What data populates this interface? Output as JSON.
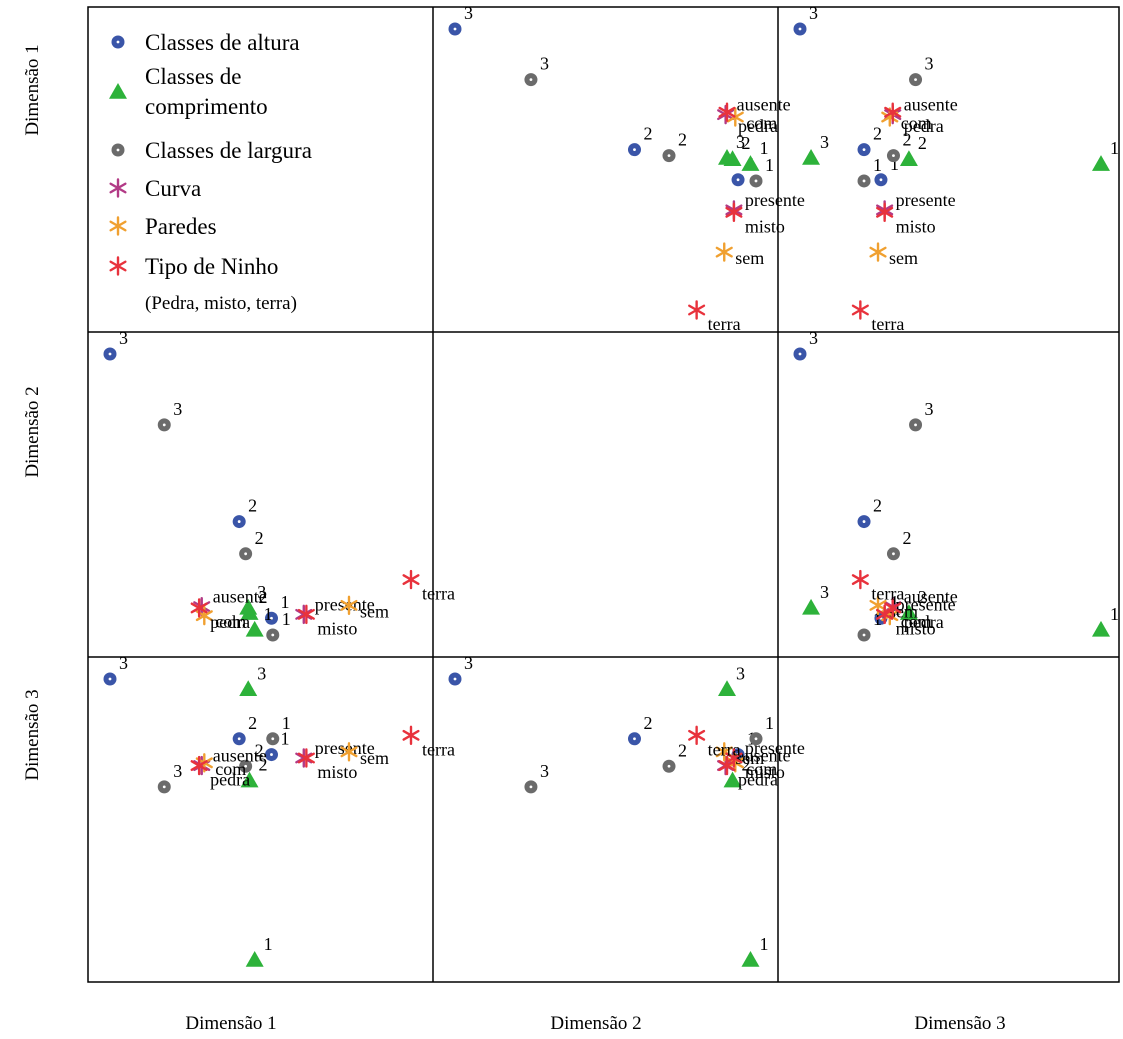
{
  "chart_data": {
    "type": "scatter",
    "title": "",
    "row_labels": [
      "Dimensão 1",
      "Dimensão 2",
      "Dimensão 3"
    ],
    "col_labels": [
      "Dimensão 1",
      "Dimensão 2",
      "Dimensão 3"
    ],
    "legend": {
      "items": [
        {
          "name": "Classes de altura",
          "marker": "circle",
          "color": "#3a55a8"
        },
        {
          "name": "Classes de comprimento",
          "marker": "triangle",
          "color": "#2db23a"
        },
        {
          "name": "Classes de largura",
          "marker": "circle",
          "color": "#6b6b6b"
        },
        {
          "name": "Curva",
          "marker": "star",
          "color": "#b23a86"
        },
        {
          "name": "Paredes",
          "marker": "star",
          "color": "#f0a030"
        },
        {
          "name": "Tipo de Ninho",
          "marker": "star",
          "color": "#e8323c"
        }
      ],
      "note": "(Pedra, misto, terra)"
    },
    "points": [
      {
        "name": "Classes de altura",
        "label": "1",
        "d1": -0.15,
        "d2": 0.14,
        "d3": -0.09
      },
      {
        "name": "Classes de altura",
        "label": "2",
        "d1": -0.4,
        "d2": -0.61,
        "d3": -0.32
      },
      {
        "name": "Classes de altura",
        "label": "3",
        "d1": -1.4,
        "d2": -1.91,
        "d3": -1.19
      },
      {
        "name": "Classes de comprimento",
        "label": "1",
        "d1": -0.28,
        "d2": 0.23,
        "d3": 2.9
      },
      {
        "name": "Classes de comprimento",
        "label": "2",
        "d1": -0.32,
        "d2": 0.1,
        "d3": 0.29
      },
      {
        "name": "Classes de comprimento",
        "label": "3",
        "d1": -0.33,
        "d2": 0.06,
        "d3": -1.04
      },
      {
        "name": "Classes de largura",
        "label": "1",
        "d1": -0.14,
        "d2": 0.27,
        "d3": -0.32
      },
      {
        "name": "Classes de largura",
        "label": "2",
        "d1": -0.35,
        "d2": -0.36,
        "d3": 0.08
      },
      {
        "name": "Classes de largura",
        "label": "3",
        "d1": -0.98,
        "d2": -1.36,
        "d3": 0.38
      },
      {
        "name": "Curva",
        "label": "ausente",
        "d1": -0.69,
        "d2": 0.05,
        "d3": 0.07
      },
      {
        "name": "Curva",
        "label": "presente",
        "d1": 0.1,
        "d2": 0.11,
        "d3": -0.04
      },
      {
        "name": "Paredes",
        "label": "com",
        "d1": -0.67,
        "d2": 0.12,
        "d3": 0.03
      },
      {
        "name": "Paredes",
        "label": "sem",
        "d1": 0.45,
        "d2": 0.04,
        "d3": -0.13
      },
      {
        "name": "Tipo de Ninho",
        "label": "pedra",
        "d1": -0.71,
        "d2": 0.06,
        "d3": 0.07
      },
      {
        "name": "Tipo de Ninho",
        "label": "misto",
        "d1": 0.12,
        "d2": 0.11,
        "d3": -0.04
      },
      {
        "name": "Tipo de Ninho",
        "label": "terra",
        "d1": 0.93,
        "d2": -0.16,
        "d3": -0.37
      }
    ]
  }
}
